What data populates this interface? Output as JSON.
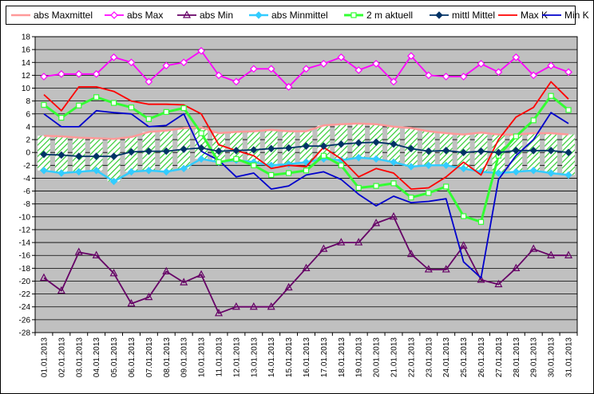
{
  "chart_data": {
    "type": "line",
    "title": "",
    "xlabel": "",
    "ylabel": "",
    "ylim": [
      -28,
      18
    ],
    "ytick_step": 2,
    "grid": true,
    "legend_position": "top",
    "plot_background": "#c0c0c0",
    "x": [
      "01.01.2013",
      "02.01.2013",
      "03.01.2013",
      "04.01.2013",
      "05.01.2013",
      "06.01.2013",
      "07.01.2013",
      "08.01.2013",
      "09.01.2013",
      "10.01.2013",
      "11.01.2013",
      "12.01.2013",
      "13.01.2013",
      "14.01.2013",
      "15.01.2013",
      "16.01.2013",
      "17.01.2013",
      "18.01.2013",
      "19.01.2013",
      "20.01.2013",
      "21.01.2013",
      "22.01.2013",
      "23.01.2013",
      "24.01.2013",
      "25.01.2013",
      "26.01.2013",
      "27.01.2013",
      "28.01.2013",
      "29.01.2013",
      "30.01.2013",
      "31.01.2013"
    ],
    "series": [
      {
        "name": "abs Maxmittel",
        "color": "#ff9999",
        "marker": "none",
        "values": [
          2.6,
          2.5,
          2.3,
          2.2,
          2.1,
          2.4,
          3.2,
          3.4,
          3.8,
          3.9,
          3.0,
          3.2,
          3.3,
          3.5,
          3.3,
          3.3,
          4.2,
          4.4,
          4.5,
          4.4,
          4.0,
          3.8,
          3.3,
          3.0,
          2.8,
          3.1,
          2.8,
          2.8,
          3.0,
          3.0,
          2.8
        ]
      },
      {
        "name": "abs Max",
        "color": "#ff00ff",
        "marker": "diamond-open",
        "values": [
          11.8,
          12.2,
          12.2,
          12.2,
          14.8,
          14.0,
          11.0,
          13.5,
          14.0,
          15.8,
          12.0,
          11.0,
          13.0,
          13.0,
          10.2,
          13.0,
          13.8,
          14.8,
          12.8,
          13.8,
          11.0,
          15.0,
          12.0,
          11.8,
          11.8,
          13.8,
          12.5,
          14.8,
          12.0,
          13.5,
          12.5
        ]
      },
      {
        "name": "abs Min",
        "color": "#660066",
        "marker": "triangle-open",
        "values": [
          -19.5,
          -21.5,
          -15.5,
          -16.0,
          -18.8,
          -23.5,
          -22.5,
          -18.5,
          -20.2,
          -19.0,
          -25.0,
          -24.0,
          -24.0,
          -24.0,
          -21.0,
          -18.0,
          -15.0,
          -14.0,
          -14.0,
          -11.0,
          -10.0,
          -15.8,
          -18.2,
          -18.2,
          -14.5,
          -19.8,
          -20.5,
          -18.0,
          -15.0,
          -16.0,
          -16.0
        ]
      },
      {
        "name": "abs Minmittel",
        "color": "#33ccff",
        "marker": "diamond-filled",
        "values": [
          -2.8,
          -3.2,
          -3.0,
          -2.8,
          -4.5,
          -3.0,
          -2.8,
          -3.0,
          -2.5,
          -1.0,
          -1.5,
          -1.2,
          -1.5,
          -2.0,
          -1.8,
          -1.5,
          -1.0,
          -1.2,
          -0.8,
          -1.0,
          -1.5,
          -2.2,
          -2.0,
          -2.0,
          -2.5,
          -3.0,
          -3.2,
          -3.0,
          -2.8,
          -3.2,
          -3.5
        ]
      },
      {
        "name": "2 m aktuell",
        "color": "#33ff33",
        "marker": "square-open",
        "values": [
          7.4,
          5.4,
          7.3,
          8.6,
          7.7,
          7.0,
          5.2,
          6.3,
          6.9,
          3.0,
          -1.5,
          -1.0,
          -2.0,
          -3.5,
          -3.2,
          -2.8,
          -0.5,
          -2.0,
          -5.5,
          -5.2,
          -4.8,
          -7.0,
          -6.3,
          -5.3,
          -9.9,
          -10.8,
          -0.5,
          2.5,
          5.0,
          8.8,
          6.6
        ]
      },
      {
        "name": "mittl Mittel",
        "color": "#003366",
        "marker": "diamond-filled",
        "values": [
          -0.3,
          -0.4,
          -0.6,
          -0.6,
          -0.6,
          0.1,
          0.2,
          0.2,
          0.5,
          0.7,
          0.2,
          0.3,
          0.4,
          0.6,
          0.7,
          1.0,
          1.0,
          1.3,
          1.5,
          1.6,
          1.3,
          0.6,
          0.2,
          0.3,
          0.0,
          0.2,
          0.0,
          0.3,
          0.3,
          0.3,
          0.0
        ]
      },
      {
        "name": "Max K",
        "color": "#ff0000",
        "marker": "none",
        "values": [
          9.0,
          6.5,
          10.2,
          10.2,
          9.5,
          8.0,
          7.5,
          7.5,
          7.4,
          6.0,
          1.2,
          0.3,
          -0.5,
          -2.5,
          -2.0,
          -2.2,
          0.8,
          -1.0,
          -3.8,
          -2.5,
          -3.2,
          -5.7,
          -5.5,
          -3.8,
          -1.5,
          -3.5,
          2.0,
          5.5,
          7.0,
          11.0,
          8.3
        ]
      },
      {
        "name": "Min K",
        "color": "#0000cc",
        "marker": "none",
        "values": [
          6.0,
          4.0,
          4.0,
          6.5,
          6.2,
          6.0,
          4.0,
          4.2,
          6.0,
          0.2,
          -1.2,
          -3.8,
          -3.2,
          -5.7,
          -5.2,
          -3.5,
          -3.0,
          -4.2,
          -6.5,
          -8.3,
          -6.8,
          -7.8,
          -7.6,
          -7.2,
          -17.0,
          -19.5,
          -4.2,
          -0.5,
          2.0,
          6.2,
          4.5
        ]
      }
    ]
  }
}
